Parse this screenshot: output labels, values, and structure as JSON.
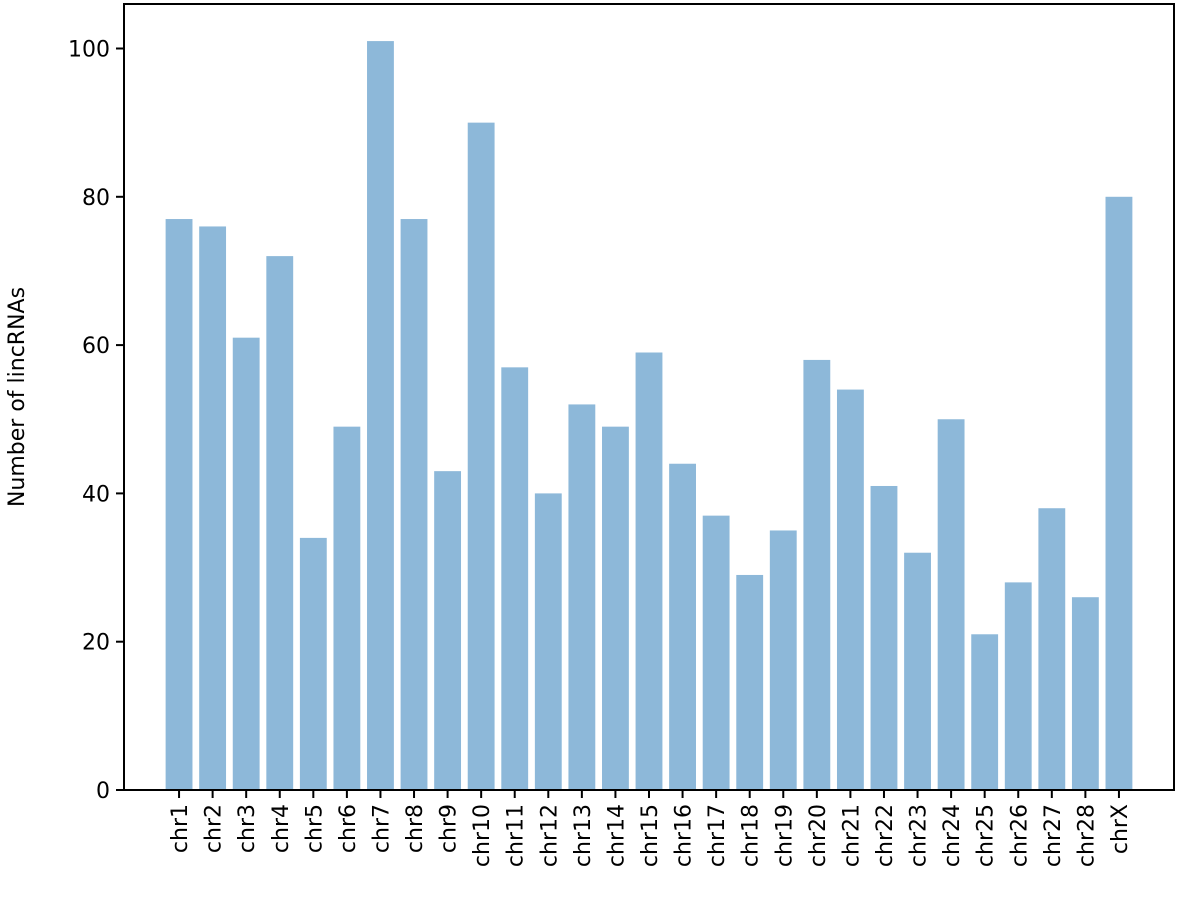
{
  "chart_data": {
    "type": "bar",
    "title": "",
    "xlabel": "",
    "ylabel": "Number of lincRNAs",
    "categories": [
      "chr1",
      "chr2",
      "chr3",
      "chr4",
      "chr5",
      "chr6",
      "chr7",
      "chr8",
      "chr9",
      "chr10",
      "chr11",
      "chr12",
      "chr13",
      "chr14",
      "chr15",
      "chr16",
      "chr17",
      "chr18",
      "chr19",
      "chr20",
      "chr21",
      "chr22",
      "chr23",
      "chr24",
      "chr25",
      "chr26",
      "chr27",
      "chr28",
      "chrX"
    ],
    "values": [
      77,
      76,
      61,
      72,
      34,
      49,
      101,
      77,
      43,
      90,
      57,
      40,
      52,
      49,
      59,
      44,
      37,
      29,
      35,
      58,
      54,
      41,
      32,
      50,
      21,
      28,
      38,
      26,
      80
    ],
    "ylim": [
      0,
      106
    ],
    "yticks": [
      0,
      20,
      40,
      60,
      80,
      100
    ],
    "grid": false,
    "legend": "none",
    "colors": {
      "bar": "#8db8d9",
      "axis": "#000000"
    }
  }
}
